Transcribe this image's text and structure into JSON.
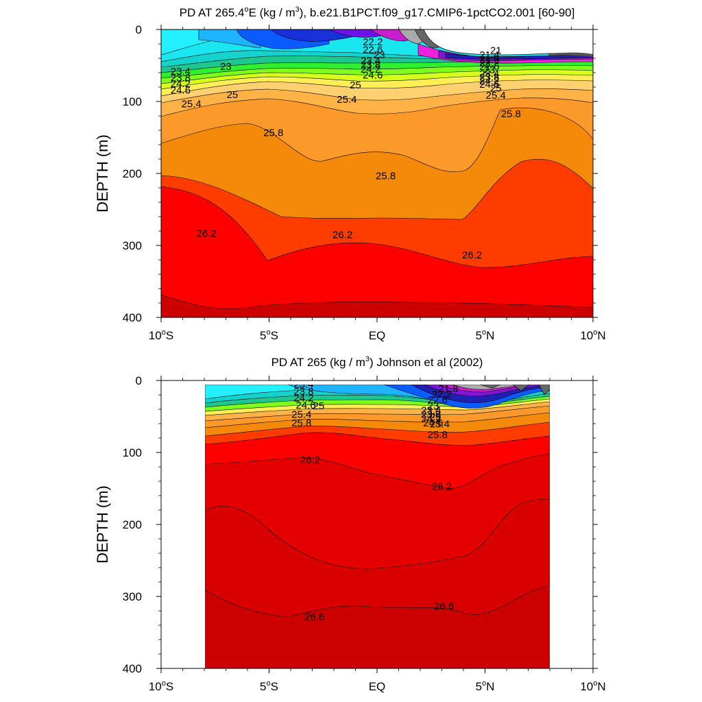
{
  "chart_data": [
    {
      "type": "heatmap",
      "subtype": "filled-contour",
      "title_main": "PD AT 265.4",
      "title_sup_o": "o",
      "title_unit_pre": "E (kg / m",
      "title_sup_3": "3",
      "title_rest": "), b.e21.B1PCT.f09_g17.CMIP6-1pctCO2.001 [60-90]",
      "ylabel": "DEPTH (m)",
      "xlim": [
        -10,
        10
      ],
      "ylim": [
        400,
        0
      ],
      "y_ticks": [
        0,
        100,
        200,
        300,
        400
      ],
      "x_ticks": [
        {
          "value": -10,
          "num": "10",
          "deg": "o",
          "hemi": "S"
        },
        {
          "value": -5,
          "num": "5",
          "deg": "o",
          "hemi": "S"
        },
        {
          "value": 0,
          "num": "",
          "deg": "",
          "hemi": "EQ"
        },
        {
          "value": 5,
          "num": "5",
          "deg": "o",
          "hemi": "N"
        },
        {
          "value": 10,
          "num": "10",
          "deg": "o",
          "hemi": "N"
        }
      ],
      "contour_labels": [
        {
          "text": "22.2",
          "x": -0.2,
          "y": 22
        },
        {
          "text": "22.6",
          "x": -0.2,
          "y": 33
        },
        {
          "text": "23",
          "x": 0.1,
          "y": 40
        },
        {
          "text": "23.4",
          "x": -0.3,
          "y": 48
        },
        {
          "text": "23.8",
          "x": -0.3,
          "y": 54
        },
        {
          "text": "24.2",
          "x": -0.3,
          "y": 60
        },
        {
          "text": "24.6",
          "x": -0.2,
          "y": 68
        },
        {
          "text": "25",
          "x": -1.0,
          "y": 82
        },
        {
          "text": "25.4",
          "x": -1.4,
          "y": 102
        },
        {
          "text": "25.8",
          "x": -4.8,
          "y": 148
        },
        {
          "text": "25.8",
          "x": 0.4,
          "y": 208
        },
        {
          "text": "25.8",
          "x": 6.2,
          "y": 122
        },
        {
          "text": "26.2",
          "x": -7.9,
          "y": 288
        },
        {
          "text": "26.2",
          "x": -1.6,
          "y": 290
        },
        {
          "text": "26.2",
          "x": 4.4,
          "y": 318
        },
        {
          "text": "23",
          "x": -7.0,
          "y": 56
        },
        {
          "text": "23.4",
          "x": -9.1,
          "y": 63
        },
        {
          "text": "23.8",
          "x": -9.1,
          "y": 72
        },
        {
          "text": "24.2",
          "x": -9.1,
          "y": 80
        },
        {
          "text": "24.6",
          "x": -9.1,
          "y": 89
        },
        {
          "text": "25",
          "x": -6.7,
          "y": 95
        },
        {
          "text": "25.4",
          "x": -8.6,
          "y": 108
        },
        {
          "text": "21",
          "x": 5.5,
          "y": 34
        },
        {
          "text": "21.4",
          "x": 5.2,
          "y": 40
        },
        {
          "text": "21.8",
          "x": 5.2,
          "y": 46
        },
        {
          "text": "22.2",
          "x": 5.2,
          "y": 51
        },
        {
          "text": "22.6",
          "x": 5.2,
          "y": 56
        },
        {
          "text": "23",
          "x": 5.2,
          "y": 61
        },
        {
          "text": "23.4",
          "x": 5.2,
          "y": 66
        },
        {
          "text": "23.8",
          "x": 5.2,
          "y": 71
        },
        {
          "text": "24.2",
          "x": 5.2,
          "y": 76
        },
        {
          "text": "24.6",
          "x": 5.2,
          "y": 81
        },
        {
          "text": "25",
          "x": 5.5,
          "y": 86
        },
        {
          "text": "25.4",
          "x": 5.5,
          "y": 96
        }
      ]
    },
    {
      "type": "heatmap",
      "subtype": "filled-contour",
      "title_main": "PD AT 265 (kg / m",
      "title_sup_3": "3",
      "title_rest": ") Johnson et al (2002)",
      "ylabel": "DEPTH (m)",
      "xlim": [
        -10,
        10
      ],
      "ylim": [
        400,
        0
      ],
      "data_extent": [
        -8,
        8
      ],
      "y_ticks": [
        0,
        100,
        200,
        300,
        400
      ],
      "x_ticks": [
        {
          "value": -10,
          "num": "10",
          "deg": "o",
          "hemi": "S"
        },
        {
          "value": -5,
          "num": "5",
          "deg": "o",
          "hemi": "S"
        },
        {
          "value": 0,
          "num": "",
          "deg": "",
          "hemi": "EQ"
        },
        {
          "value": 5,
          "num": "5",
          "deg": "o",
          "hemi": "N"
        },
        {
          "value": 10,
          "num": "10",
          "deg": "o",
          "hemi": "N"
        }
      ],
      "contour_labels": [
        {
          "text": "23.4",
          "x": -3.4,
          "y": 10
        },
        {
          "text": "23.8",
          "x": -3.4,
          "y": 20
        },
        {
          "text": "24.2",
          "x": -3.4,
          "y": 29
        },
        {
          "text": "24.6",
          "x": -3.3,
          "y": 39
        },
        {
          "text": "25",
          "x": -2.7,
          "y": 40
        },
        {
          "text": "25.4",
          "x": -3.5,
          "y": 52
        },
        {
          "text": "25.8",
          "x": -3.5,
          "y": 64
        },
        {
          "text": "26.2",
          "x": -3.1,
          "y": 115
        },
        {
          "text": "26.2",
          "x": 3.0,
          "y": 152
        },
        {
          "text": "26.6",
          "x": -2.9,
          "y": 333
        },
        {
          "text": "26.6",
          "x": 3.1,
          "y": 318
        },
        {
          "text": "21.8",
          "x": 3.3,
          "y": 16
        },
        {
          "text": "22.2",
          "x": 3.0,
          "y": 24
        },
        {
          "text": "22.6",
          "x": 2.8,
          "y": 32
        },
        {
          "text": "23",
          "x": 2.6,
          "y": 40
        },
        {
          "text": "23.4",
          "x": 2.5,
          "y": 46
        },
        {
          "text": "23.8",
          "x": 2.5,
          "y": 52
        },
        {
          "text": "24.2",
          "x": 2.5,
          "y": 58
        },
        {
          "text": "24.6",
          "x": 2.6,
          "y": 64
        },
        {
          "text": "25",
          "x": 2.7,
          "y": 55
        },
        {
          "text": "25.4",
          "x": 2.9,
          "y": 65
        },
        {
          "text": "25.8",
          "x": 2.8,
          "y": 80
        }
      ]
    }
  ]
}
